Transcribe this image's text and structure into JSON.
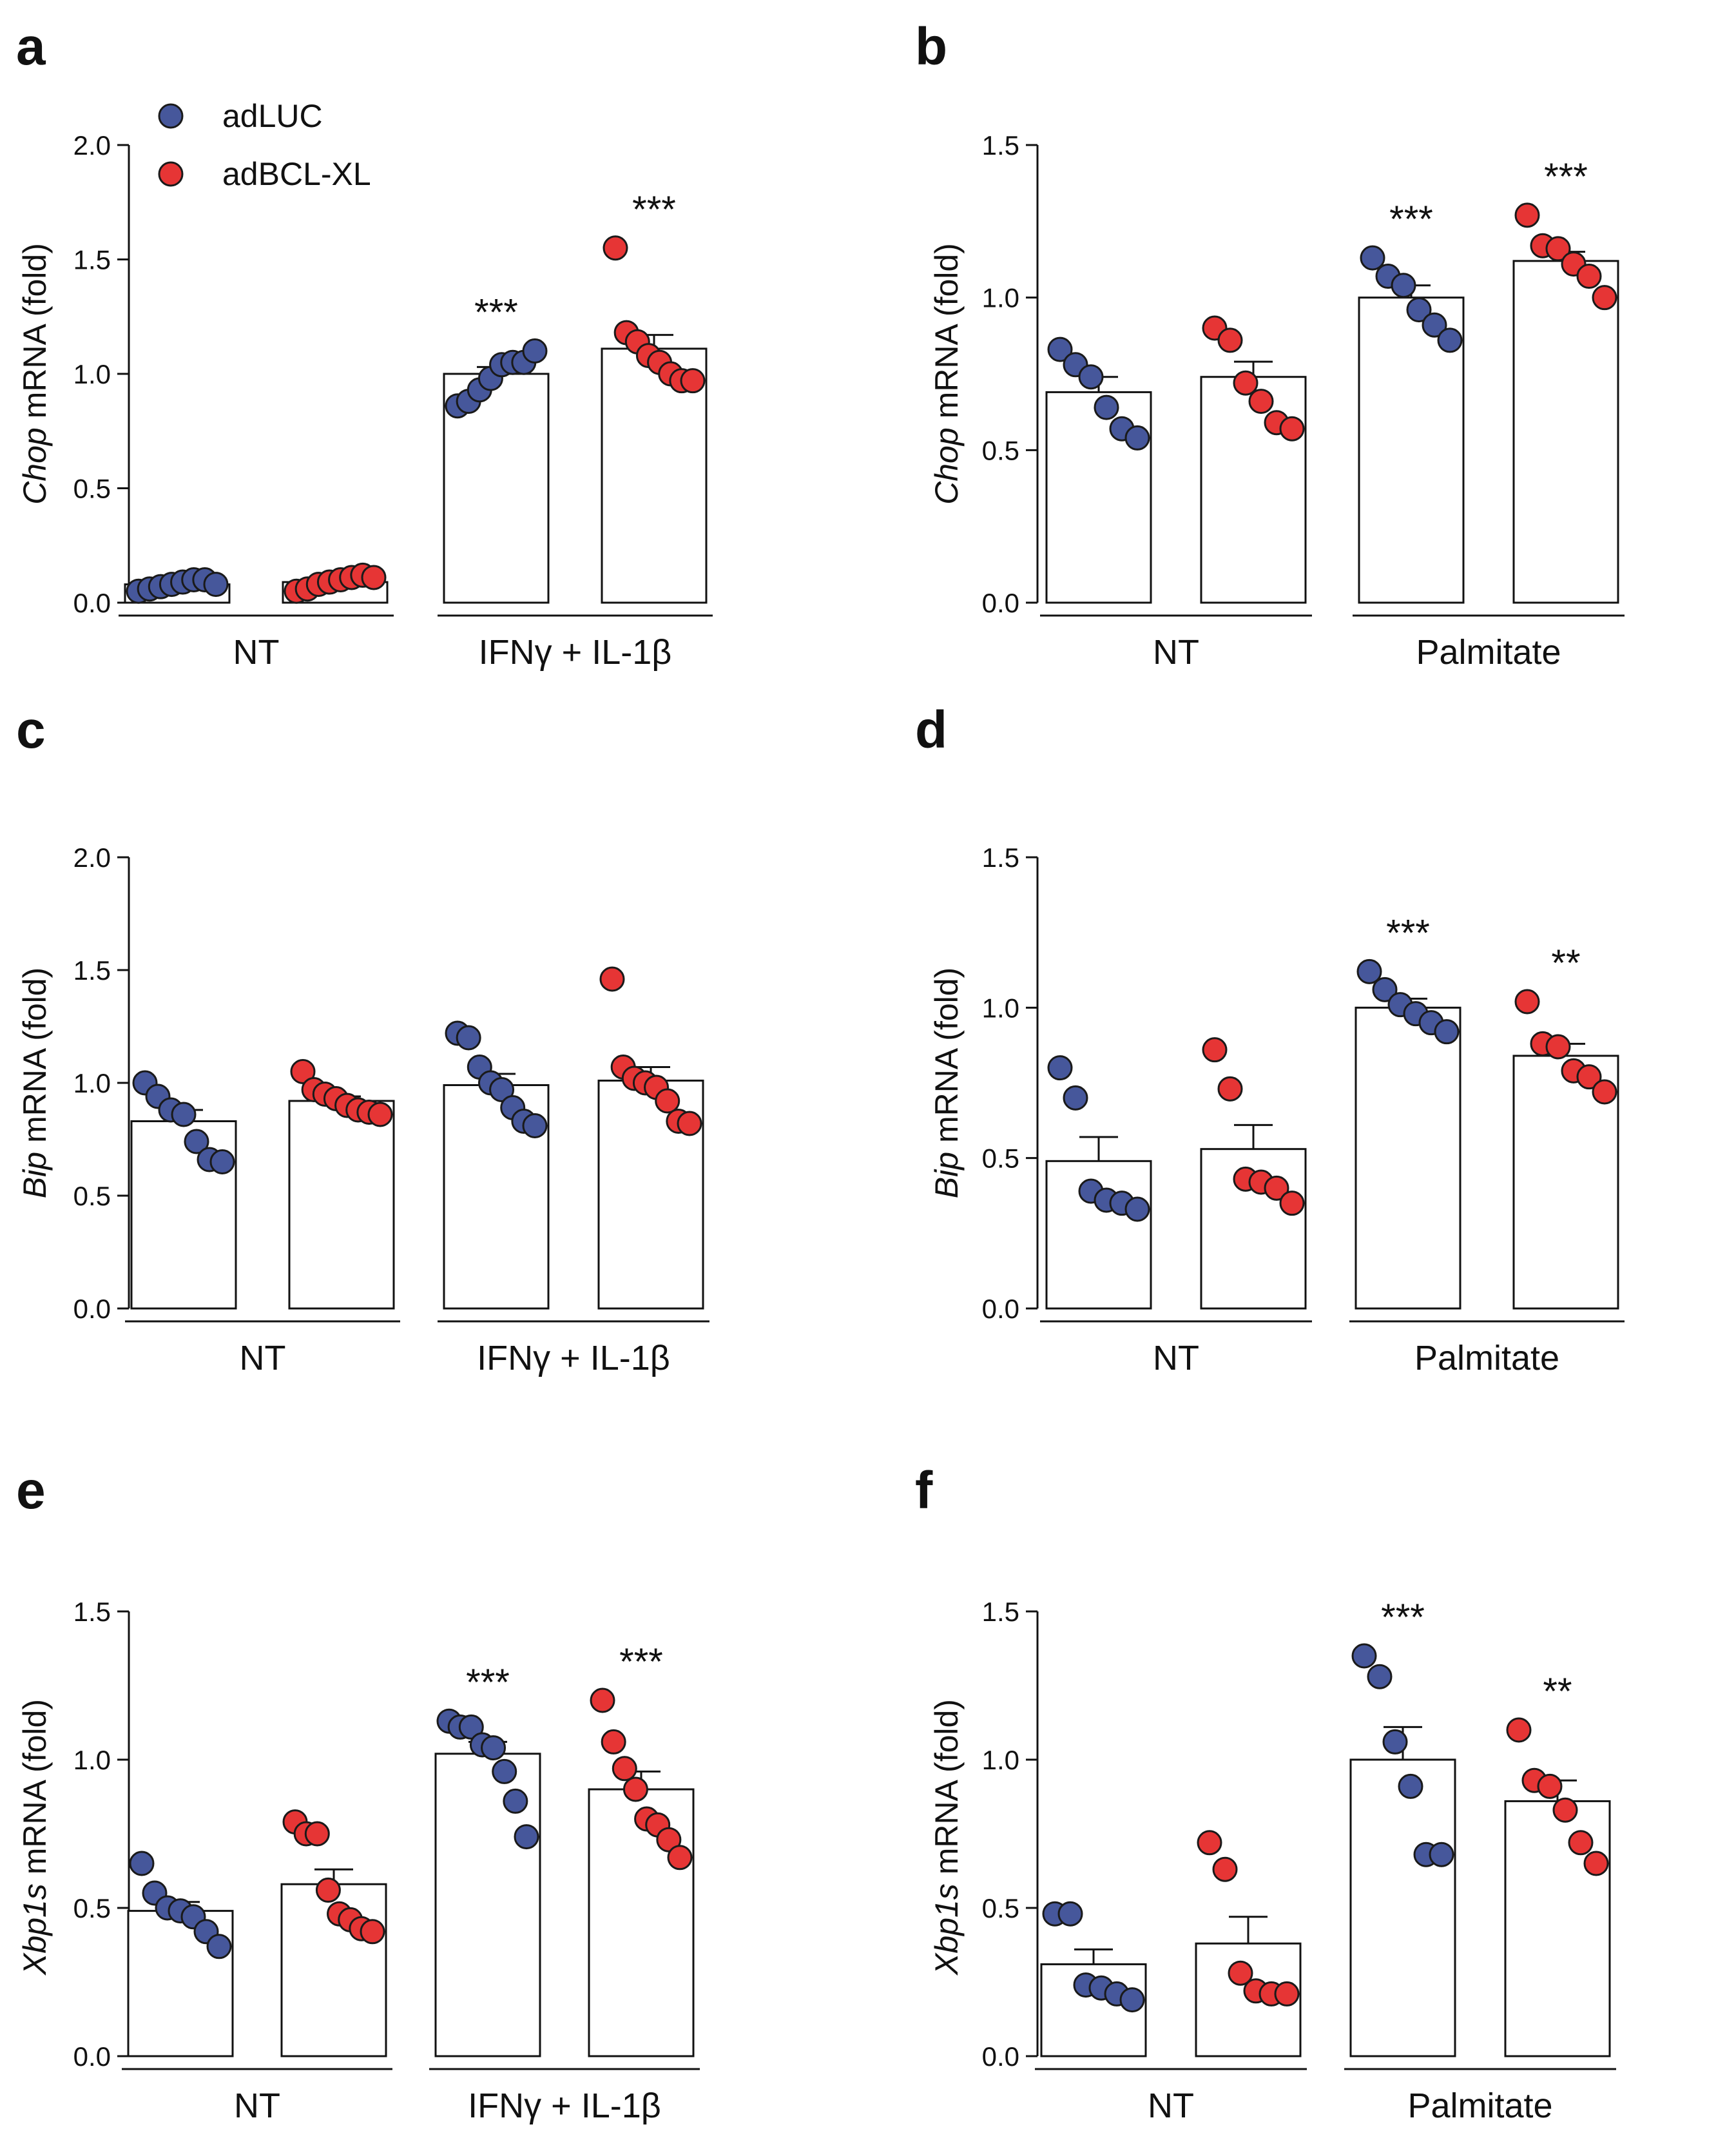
{
  "legend": {
    "items": [
      {
        "label": "adLUC",
        "color": "#46579b"
      },
      {
        "label": "adBCL-XL",
        "color": "#e63535"
      }
    ]
  },
  "colors": {
    "adLUC": "#46579b",
    "adBCL-XL": "#e63535",
    "axis": "#111111",
    "bar_fill": "#ffffff"
  },
  "chart_data": [
    {
      "panel": "a",
      "type": "bar",
      "ylabel_gene": "Chop",
      "ylabel_rest": " mRNA (fold)",
      "ylim": [
        0,
        2.0
      ],
      "ticks": [
        "0.0",
        "0.5",
        "1.0",
        "1.5",
        "2.0"
      ],
      "groups": [
        "NT",
        "IFNγ + IL-1β"
      ],
      "series": [
        "adLUC",
        "adBCL-XL"
      ],
      "bars": [
        {
          "group": "NT",
          "series": "adLUC",
          "mean": 0.08,
          "sem": 0.01,
          "points": [
            0.05,
            0.06,
            0.07,
            0.08,
            0.09,
            0.1,
            0.1,
            0.08
          ],
          "sig": ""
        },
        {
          "group": "NT",
          "series": "adBCL-XL",
          "mean": 0.09,
          "sem": 0.01,
          "points": [
            0.05,
            0.06,
            0.08,
            0.09,
            0.1,
            0.11,
            0.12,
            0.11
          ],
          "sig": ""
        },
        {
          "group": "IFNγ + IL-1β",
          "series": "adLUC",
          "mean": 1.0,
          "sem": 0.03,
          "points": [
            0.86,
            0.88,
            0.93,
            0.98,
            1.04,
            1.05,
            1.05,
            1.1
          ],
          "sig": "***"
        },
        {
          "group": "IFNγ + IL-1β",
          "series": "adBCL-XL",
          "mean": 1.11,
          "sem": 0.06,
          "points": [
            1.55,
            1.18,
            1.14,
            1.08,
            1.05,
            1.0,
            0.97,
            0.97
          ],
          "sig": "***"
        }
      ]
    },
    {
      "panel": "b",
      "type": "bar",
      "ylabel_gene": "Chop",
      "ylabel_rest": " mRNA (fold)",
      "ylim": [
        0,
        1.5
      ],
      "ticks": [
        "0.0",
        "0.5",
        "1.0",
        "1.5"
      ],
      "groups": [
        "NT",
        "Palmitate"
      ],
      "series": [
        "adLUC",
        "adBCL-XL"
      ],
      "bars": [
        {
          "group": "NT",
          "series": "adLUC",
          "mean": 0.69,
          "sem": 0.05,
          "points": [
            0.83,
            0.78,
            0.74,
            0.64,
            0.57,
            0.54
          ],
          "sig": ""
        },
        {
          "group": "NT",
          "series": "adBCL-XL",
          "mean": 0.74,
          "sem": 0.05,
          "points": [
            0.9,
            0.86,
            0.72,
            0.66,
            0.59,
            0.57
          ],
          "sig": ""
        },
        {
          "group": "Palmitate",
          "series": "adLUC",
          "mean": 1.0,
          "sem": 0.04,
          "points": [
            1.13,
            1.07,
            1.04,
            0.96,
            0.91,
            0.86
          ],
          "sig": "***"
        },
        {
          "group": "Palmitate",
          "series": "adBCL-XL",
          "mean": 1.12,
          "sem": 0.03,
          "points": [
            1.27,
            1.17,
            1.16,
            1.11,
            1.07,
            1.0
          ],
          "sig": "***"
        }
      ]
    },
    {
      "panel": "c",
      "type": "bar",
      "ylabel_gene": "Bip",
      "ylabel_rest": " mRNA (fold)",
      "ylim": [
        0,
        2.0
      ],
      "ticks": [
        "0.0",
        "0.5",
        "1.0",
        "1.5",
        "2.0"
      ],
      "groups": [
        "NT",
        "IFNγ + IL-1β"
      ],
      "series": [
        "adLUC",
        "adBCL-XL"
      ],
      "bars": [
        {
          "group": "NT",
          "series": "adLUC",
          "mean": 0.83,
          "sem": 0.05,
          "points": [
            1.0,
            0.94,
            0.88,
            0.86,
            0.74,
            0.66,
            0.65
          ],
          "sig": ""
        },
        {
          "group": "NT",
          "series": "adBCL-XL",
          "mean": 0.92,
          "sem": 0.02,
          "points": [
            1.05,
            0.97,
            0.95,
            0.93,
            0.9,
            0.88,
            0.87,
            0.86
          ],
          "sig": ""
        },
        {
          "group": "IFNγ + IL-1β",
          "series": "adLUC",
          "mean": 0.99,
          "sem": 0.05,
          "points": [
            1.22,
            1.2,
            1.07,
            1.0,
            0.97,
            0.89,
            0.83,
            0.81
          ],
          "sig": ""
        },
        {
          "group": "IFNγ + IL-1β",
          "series": "adBCL-XL",
          "mean": 1.01,
          "sem": 0.06,
          "points": [
            1.46,
            1.07,
            1.02,
            1.0,
            0.98,
            0.92,
            0.83,
            0.82
          ],
          "sig": ""
        }
      ]
    },
    {
      "panel": "d",
      "type": "bar",
      "ylabel_gene": "Bip",
      "ylabel_rest": " mRNA (fold)",
      "ylim": [
        0,
        1.5
      ],
      "ticks": [
        "0.0",
        "0.5",
        "1.0",
        "1.5"
      ],
      "groups": [
        "NT",
        "Palmitate"
      ],
      "series": [
        "adLUC",
        "adBCL-XL"
      ],
      "bars": [
        {
          "group": "NT",
          "series": "adLUC",
          "mean": 0.49,
          "sem": 0.08,
          "points": [
            0.8,
            0.7,
            0.39,
            0.36,
            0.35,
            0.33
          ],
          "sig": ""
        },
        {
          "group": "NT",
          "series": "adBCL-XL",
          "mean": 0.53,
          "sem": 0.08,
          "points": [
            0.86,
            0.73,
            0.43,
            0.42,
            0.4,
            0.35
          ],
          "sig": ""
        },
        {
          "group": "Palmitate",
          "series": "adLUC",
          "mean": 1.0,
          "sem": 0.03,
          "points": [
            1.12,
            1.06,
            1.01,
            0.98,
            0.95,
            0.92
          ],
          "sig": "***"
        },
        {
          "group": "Palmitate",
          "series": "adBCL-XL",
          "mean": 0.84,
          "sem": 0.04,
          "points": [
            1.02,
            0.88,
            0.87,
            0.79,
            0.77,
            0.72
          ],
          "sig": "**"
        }
      ]
    },
    {
      "panel": "e",
      "type": "bar",
      "ylabel_gene": "Xbp1s",
      "ylabel_rest": " mRNA (fold)",
      "ylim": [
        0,
        1.5
      ],
      "ticks": [
        "0.0",
        "0.5",
        "1.0",
        "1.5"
      ],
      "groups": [
        "NT",
        "IFNγ + IL-1β"
      ],
      "series": [
        "adLUC",
        "adBCL-XL"
      ],
      "bars": [
        {
          "group": "NT",
          "series": "adLUC",
          "mean": 0.49,
          "sem": 0.03,
          "points": [
            0.65,
            0.55,
            0.5,
            0.49,
            0.47,
            0.42,
            0.37
          ],
          "sig": ""
        },
        {
          "group": "NT",
          "series": "adBCL-XL",
          "mean": 0.58,
          "sem": 0.05,
          "points": [
            0.79,
            0.75,
            0.75,
            0.56,
            0.48,
            0.46,
            0.43,
            0.42
          ],
          "sig": ""
        },
        {
          "group": "IFNγ + IL-1β",
          "series": "adLUC",
          "mean": 1.02,
          "sem": 0.04,
          "points": [
            1.13,
            1.11,
            1.11,
            1.05,
            1.04,
            0.96,
            0.86,
            0.74
          ],
          "sig": "***"
        },
        {
          "group": "IFNγ + IL-1β",
          "series": "adBCL-XL",
          "mean": 0.9,
          "sem": 0.06,
          "points": [
            1.2,
            1.06,
            0.97,
            0.9,
            0.8,
            0.78,
            0.73,
            0.67
          ],
          "sig": "***"
        }
      ]
    },
    {
      "panel": "f",
      "type": "bar",
      "ylabel_gene": "Xbp1s",
      "ylabel_rest": " mRNA (fold)",
      "ylim": [
        0,
        1.5
      ],
      "ticks": [
        "0.0",
        "0.5",
        "1.0",
        "1.5"
      ],
      "groups": [
        "NT",
        "Palmitate"
      ],
      "series": [
        "adLUC",
        "adBCL-XL"
      ],
      "bars": [
        {
          "group": "NT",
          "series": "adLUC",
          "mean": 0.31,
          "sem": 0.05,
          "points": [
            0.48,
            0.48,
            0.24,
            0.23,
            0.21,
            0.19
          ],
          "sig": ""
        },
        {
          "group": "NT",
          "series": "adBCL-XL",
          "mean": 0.38,
          "sem": 0.09,
          "points": [
            0.72,
            0.63,
            0.28,
            0.22,
            0.21,
            0.21
          ],
          "sig": ""
        },
        {
          "group": "Palmitate",
          "series": "adLUC",
          "mean": 1.0,
          "sem": 0.11,
          "points": [
            1.35,
            1.28,
            1.06,
            0.91,
            0.68,
            0.68
          ],
          "sig": "***"
        },
        {
          "group": "Palmitate",
          "series": "adBCL-XL",
          "mean": 0.86,
          "sem": 0.07,
          "points": [
            1.1,
            0.93,
            0.91,
            0.83,
            0.72,
            0.65
          ],
          "sig": "**"
        }
      ]
    }
  ]
}
